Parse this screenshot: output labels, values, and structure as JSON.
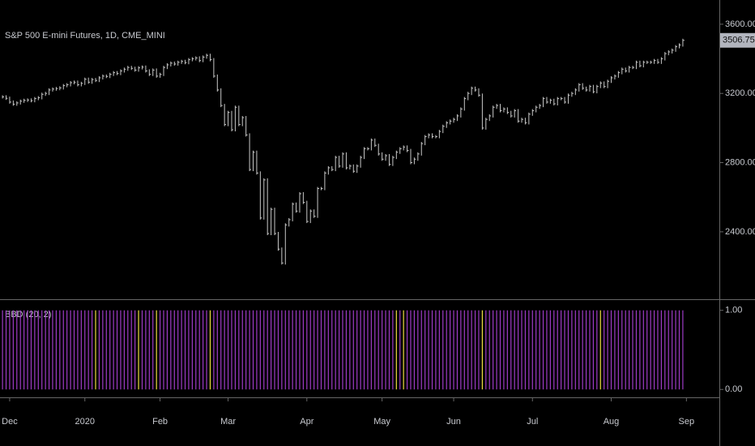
{
  "chart_data": [
    {
      "type": "price-bars",
      "title": "S&P 500 E-mini Futures, 1D, CME_MINI",
      "color": "#c8c8c8",
      "values": [
        3180,
        3172,
        3150,
        3138,
        3145,
        3155,
        3160,
        3162,
        3158,
        3170,
        3175,
        3195,
        3200,
        3220,
        3225,
        3228,
        3232,
        3245,
        3250,
        3262,
        3265,
        3250,
        3258,
        3282,
        3265,
        3280,
        3275,
        3290,
        3300,
        3298,
        3310,
        3320,
        3315,
        3330,
        3340,
        3350,
        3345,
        3335,
        3348,
        3352,
        3330,
        3310,
        3335,
        3300,
        3310,
        3350,
        3365,
        3375,
        3370,
        3380,
        3385,
        3378,
        3395,
        3400,
        3405,
        3390,
        3410,
        3420,
        3395,
        3300,
        3220,
        3130,
        3020,
        3090,
        2990,
        3120,
        3020,
        3060,
        2960,
        2760,
        2860,
        2740,
        2480,
        2700,
        2390,
        2530,
        2390,
        2300,
        2220,
        2440,
        2470,
        2560,
        2520,
        2620,
        2570,
        2460,
        2520,
        2490,
        2650,
        2650,
        2740,
        2770,
        2760,
        2830,
        2780,
        2850,
        2770,
        2780,
        2750,
        2780,
        2830,
        2880,
        2880,
        2930,
        2900,
        2850,
        2820,
        2840,
        2790,
        2830,
        2860,
        2880,
        2890,
        2870,
        2800,
        2820,
        2850,
        2910,
        2950,
        2960,
        2950,
        2950,
        2980,
        3010,
        3030,
        3040,
        3050,
        3070,
        3110,
        3170,
        3200,
        3230,
        3220,
        3190,
        3000,
        3050,
        3070,
        3120,
        3130,
        3100,
        3110,
        3090,
        3070,
        3100,
        3040,
        3050,
        3030,
        3080,
        3100,
        3120,
        3130,
        3170,
        3150,
        3160,
        3140,
        3170,
        3170,
        3150,
        3190,
        3200,
        3220,
        3250,
        3230,
        3220,
        3240,
        3210,
        3240,
        3260,
        3240,
        3270,
        3290,
        3300,
        3320,
        3340,
        3330,
        3350,
        3350,
        3380,
        3360,
        3380,
        3380,
        3380,
        3390,
        3380,
        3400,
        3430,
        3440,
        3450,
        3470,
        3480,
        3506.75
      ],
      "ylim": [
        2015,
        3740
      ],
      "yticks": [
        {
          "value": 2400,
          "label": "2400.00"
        },
        {
          "value": 2800,
          "label": "2800.00"
        },
        {
          "value": 3200,
          "label": "3200.00"
        },
        {
          "value": 3600,
          "label": "3600.00"
        }
      ],
      "xlim": [
        -0.7,
        200.2
      ],
      "xticks": [
        {
          "value": 2,
          "label": "Dec"
        },
        {
          "value": 23,
          "label": "2020"
        },
        {
          "value": 44,
          "label": "Feb"
        },
        {
          "value": 63,
          "label": "Mar"
        },
        {
          "value": 85,
          "label": "Apr"
        },
        {
          "value": 106,
          "label": "May"
        },
        {
          "value": 126,
          "label": "Jun"
        },
        {
          "value": 148,
          "label": "Jul"
        },
        {
          "value": 170,
          "label": "Aug"
        },
        {
          "value": 191,
          "label": "Sep"
        }
      ]
    },
    {
      "type": "bar",
      "title": "BBD (20, 2)",
      "color": "#a03cc8",
      "highlight_color": "#f0e040",
      "values": [
        1,
        1,
        1,
        1,
        1,
        1,
        1,
        1,
        1,
        1,
        1,
        1,
        1,
        1,
        1,
        1,
        1,
        1,
        1,
        1,
        1,
        1,
        1,
        1,
        1,
        1,
        1,
        1,
        1,
        1,
        1,
        1,
        1,
        1,
        1,
        1,
        1,
        1,
        1,
        1,
        1,
        1,
        1,
        1,
        1,
        1,
        1,
        1,
        1,
        1,
        1,
        1,
        1,
        1,
        1,
        1,
        1,
        1,
        1,
        1,
        1,
        1,
        1,
        1,
        1,
        1,
        1,
        1,
        1,
        1,
        1,
        1,
        1,
        1,
        1,
        1,
        1,
        1,
        1,
        1,
        1,
        1,
        1,
        1,
        1,
        1,
        1,
        1,
        1,
        1,
        1,
        1,
        1,
        1,
        1,
        1,
        1,
        1,
        1,
        1,
        1,
        1,
        1,
        1,
        1,
        1,
        1,
        1,
        1,
        1,
        1,
        1,
        1,
        1,
        1,
        1,
        1,
        1,
        1,
        1,
        1,
        1,
        1,
        1,
        1,
        1,
        1,
        1,
        1,
        1,
        1,
        1,
        1,
        1,
        1,
        1,
        1,
        1,
        1,
        1,
        1,
        1,
        1,
        1,
        1,
        1,
        1,
        1,
        1,
        1,
        1,
        1,
        1,
        1,
        1,
        1,
        1,
        1,
        1,
        1,
        1,
        1,
        1,
        1,
        1,
        1,
        1,
        1,
        1,
        1,
        1,
        1,
        1,
        1,
        1,
        1,
        1,
        1,
        1,
        1,
        1,
        1,
        1,
        1,
        1,
        1,
        1,
        1,
        1,
        1,
        1
      ],
      "highlighted": [
        26,
        38,
        43,
        58,
        110,
        112,
        134,
        167
      ],
      "ylim": [
        -0.1,
        1.13
      ],
      "yticks": [
        {
          "value": 0,
          "label": "0.00"
        },
        {
          "value": 1,
          "label": "1.00"
        }
      ]
    }
  ]
}
